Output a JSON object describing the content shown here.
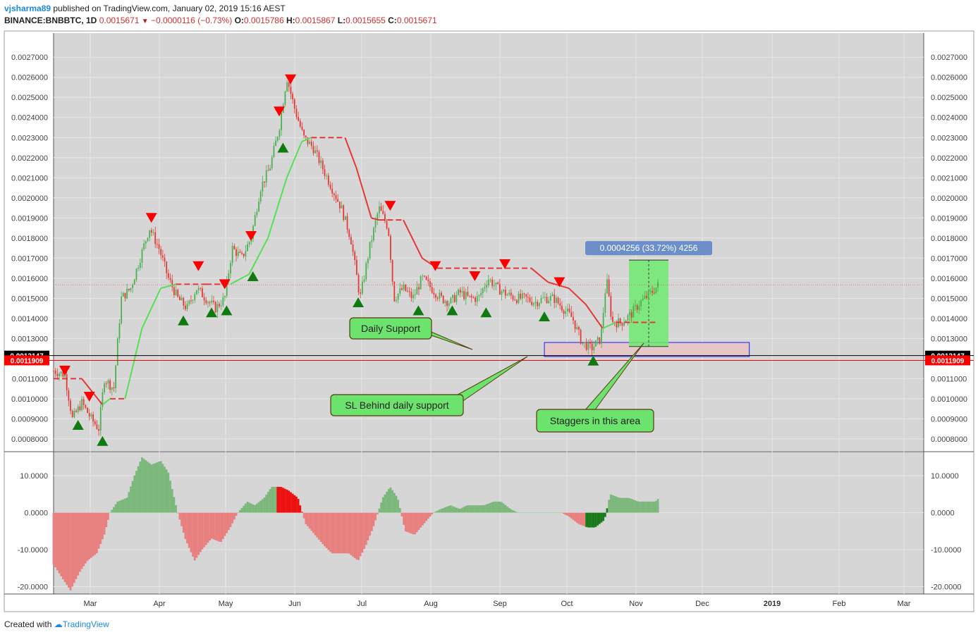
{
  "header": {
    "author": "vjsharma89",
    "published_text": " published on TradingView.com, January 02, 2019 15:16 AEST",
    "symbol": "BINANCE:BNBBTC, 1D",
    "last": "0.0015671",
    "change": "−0.0000116 (−0.73%)",
    "o_label": "O:",
    "o": "0.0015786",
    "h_label": "H:",
    "h": "0.0015867",
    "l_label": "L:",
    "l": "0.0015655",
    "c_label": "C:",
    "c": "0.0015671",
    "down_glyph": "▼"
  },
  "footer": {
    "created_with": "Created with",
    "brand": "TradingView"
  },
  "colors": {
    "bg": "#d6d6d6",
    "up": "#4caf50",
    "down": "#e53935",
    "osc_up": "#7cb87c",
    "osc_down": "#e88080",
    "osc_up_strong": "#1b7a1b",
    "osc_down_strong": "#ee1111",
    "grid": "#e6e6e6"
  },
  "chart_data": [
    {
      "type": "candlestick",
      "x_ticks": [
        "Mar",
        "Apr",
        "May",
        "Jun",
        "Jul",
        "Aug",
        "Sep",
        "Oct",
        "Nov",
        "Dec",
        "2019",
        "Feb",
        "Mar"
      ],
      "y_ticks": [
        "0.0027000",
        "0.0026000",
        "0.0025000",
        "0.0024000",
        "0.0023000",
        "0.0022000",
        "0.0021000",
        "0.0020000",
        "0.0019000",
        "0.0018000",
        "0.0017000",
        "0.0016000",
        "0.0015000",
        "0.0014000",
        "0.0013000",
        "0.0011000",
        "0.0010000",
        "0.0009000",
        "0.0008000"
      ],
      "ylim": [
        0.00074,
        0.00282
      ],
      "price_series": [
        [
          "2018-02-14",
          0.00114
        ],
        [
          "2018-02-20",
          0.00112
        ],
        [
          "2018-02-24",
          0.0009
        ],
        [
          "2018-03-01",
          0.00098
        ],
        [
          "2018-03-06",
          0.0009
        ],
        [
          "2018-03-10",
          0.00085
        ],
        [
          "2018-03-13",
          0.0011
        ],
        [
          "2018-03-18",
          0.00105
        ],
        [
          "2018-03-22",
          0.0015
        ],
        [
          "2018-03-27",
          0.00155
        ],
        [
          "2018-04-01",
          0.0017
        ],
        [
          "2018-04-06",
          0.00185
        ],
        [
          "2018-04-11",
          0.00175
        ],
        [
          "2018-04-16",
          0.0016
        ],
        [
          "2018-04-21",
          0.0015
        ],
        [
          "2018-04-26",
          0.00145
        ],
        [
          "2018-05-01",
          0.00155
        ],
        [
          "2018-05-06",
          0.0015
        ],
        [
          "2018-05-11",
          0.00145
        ],
        [
          "2018-05-16",
          0.0015
        ],
        [
          "2018-05-20",
          0.00175
        ],
        [
          "2018-05-25",
          0.0017
        ],
        [
          "2018-05-30",
          0.0018
        ],
        [
          "2018-06-04",
          0.00205
        ],
        [
          "2018-06-09",
          0.00215
        ],
        [
          "2018-06-14",
          0.00235
        ],
        [
          "2018-06-18",
          0.0026
        ],
        [
          "2018-06-22",
          0.00245
        ],
        [
          "2018-06-27",
          0.0023
        ],
        [
          "2018-07-02",
          0.00225
        ],
        [
          "2018-07-07",
          0.00215
        ],
        [
          "2018-07-12",
          0.00205
        ],
        [
          "2018-07-17",
          0.00195
        ],
        [
          "2018-07-22",
          0.0018
        ],
        [
          "2018-07-27",
          0.0015
        ],
        [
          "2018-08-01",
          0.00175
        ],
        [
          "2018-08-06",
          0.00195
        ],
        [
          "2018-08-11",
          0.00185
        ],
        [
          "2018-08-14",
          0.0015
        ],
        [
          "2018-08-19",
          0.00155
        ],
        [
          "2018-08-24",
          0.0015
        ],
        [
          "2018-08-29",
          0.0016
        ],
        [
          "2018-09-03",
          0.00155
        ],
        [
          "2018-09-08",
          0.0015
        ],
        [
          "2018-09-13",
          0.00148
        ],
        [
          "2018-09-18",
          0.00153
        ],
        [
          "2018-09-23",
          0.0015
        ],
        [
          "2018-09-28",
          0.0015
        ],
        [
          "2018-10-03",
          0.0016
        ],
        [
          "2018-10-08",
          0.00155
        ],
        [
          "2018-10-13",
          0.00152
        ],
        [
          "2018-10-18",
          0.0015
        ],
        [
          "2018-10-23",
          0.0015
        ],
        [
          "2018-10-28",
          0.00148
        ],
        [
          "2018-11-02",
          0.0015
        ],
        [
          "2018-11-07",
          0.0015
        ],
        [
          "2018-11-12",
          0.00145
        ],
        [
          "2018-11-17",
          0.0014
        ],
        [
          "2018-11-22",
          0.00128
        ],
        [
          "2018-11-27",
          0.00125
        ],
        [
          "2018-12-02",
          0.0013
        ],
        [
          "2018-12-05",
          0.0016
        ],
        [
          "2018-12-08",
          0.00138
        ],
        [
          "2018-12-13",
          0.00138
        ],
        [
          "2018-12-18",
          0.00142
        ],
        [
          "2018-12-23",
          0.00148
        ],
        [
          "2018-12-28",
          0.00152
        ],
        [
          "2019-01-02",
          0.00157
        ]
      ],
      "trend_line": [
        [
          "2018-02-14",
          0.0011
        ],
        [
          "2018-03-01",
          0.0011
        ],
        [
          "2018-03-12",
          0.00097
        ],
        [
          "2018-03-16",
          0.001
        ],
        [
          "2018-03-24",
          0.001
        ],
        [
          "2018-04-02",
          0.00135
        ],
        [
          "2018-04-12",
          0.00155
        ],
        [
          "2018-04-20",
          0.00157
        ],
        [
          "2018-05-06",
          0.00157
        ],
        [
          "2018-05-19",
          0.00157
        ],
        [
          "2018-05-29",
          0.00162
        ],
        [
          "2018-06-08",
          0.0018
        ],
        [
          "2018-06-18",
          0.0021
        ],
        [
          "2018-06-26",
          0.00228
        ],
        [
          "2018-07-01",
          0.0023
        ],
        [
          "2018-07-19",
          0.0023
        ],
        [
          "2018-07-25",
          0.00215
        ],
        [
          "2018-08-02",
          0.0019
        ],
        [
          "2018-08-06",
          0.00189
        ],
        [
          "2018-08-19",
          0.00189
        ],
        [
          "2018-08-29",
          0.0017
        ],
        [
          "2018-09-06",
          0.00165
        ],
        [
          "2018-10-26",
          0.00165
        ],
        [
          "2018-11-04",
          0.00158
        ],
        [
          "2018-11-15",
          0.00155
        ],
        [
          "2018-11-24",
          0.00147
        ],
        [
          "2018-12-03",
          0.00135
        ],
        [
          "2018-12-10",
          0.00138
        ],
        [
          "2019-01-01",
          0.00138
        ]
      ],
      "markers_up": [
        [
          "2018-02-27",
          0.00087
        ],
        [
          "2018-03-12",
          0.00079
        ],
        [
          "2018-04-24",
          0.00139
        ],
        [
          "2018-05-09",
          0.00143
        ],
        [
          "2018-05-17",
          0.00144
        ],
        [
          "2018-05-31",
          0.00161
        ],
        [
          "2018-06-16",
          0.00225
        ],
        [
          "2018-07-26",
          0.00148
        ],
        [
          "2018-08-27",
          0.00144
        ],
        [
          "2018-09-14",
          0.00144
        ],
        [
          "2018-10-02",
          0.00143
        ],
        [
          "2018-11-02",
          0.00141
        ],
        [
          "2018-11-28",
          0.00119
        ]
      ],
      "markers_down": [
        [
          "2018-02-20",
          0.00114
        ],
        [
          "2018-03-05",
          0.00101
        ],
        [
          "2018-04-07",
          0.0019
        ],
        [
          "2018-05-02",
          0.00166
        ],
        [
          "2018-05-16",
          0.00157
        ],
        [
          "2018-05-30",
          0.00181
        ],
        [
          "2018-06-14",
          0.00243
        ],
        [
          "2018-06-20",
          0.00259
        ],
        [
          "2018-08-12",
          0.00196
        ],
        [
          "2018-09-05",
          0.00166
        ],
        [
          "2018-09-26",
          0.00161
        ],
        [
          "2018-10-12",
          0.00167
        ],
        [
          "2018-11-10",
          0.00158
        ]
      ],
      "price_tags": [
        {
          "label": "0.0012147",
          "value": 0.0012147,
          "color": "#000000"
        },
        {
          "label": "0.0011909",
          "value": 0.0011909,
          "color": "#ff0000"
        }
      ],
      "current_price_line": 0.0015671,
      "measure": {
        "label": "0.0004256 (33.72%) 4256",
        "from_date": "2018-12-17",
        "to_date": "2019-01-07",
        "low": 0.00126,
        "high": 0.00169
      },
      "support_zone": {
        "from_date": "2018-11-02",
        "to_date": "2019-02-19",
        "low": 0.00121,
        "high": 0.00128
      },
      "annotations": [
        {
          "text": "Daily Support"
        },
        {
          "text": "SL Behind daily support"
        },
        {
          "text": "Staggers in this area"
        }
      ]
    },
    {
      "type": "bar",
      "name": "oscillator",
      "y_ticks": [
        "10.0000",
        "0.0000",
        "-10.0000",
        "-20.0000"
      ],
      "ylim": [
        -22,
        16.5
      ],
      "series": [
        [
          "2018-02-14",
          -14
        ],
        [
          "2018-02-19",
          -18
        ],
        [
          "2018-02-23",
          -21
        ],
        [
          "2018-02-28",
          -16
        ],
        [
          "2018-03-04",
          -13
        ],
        [
          "2018-03-09",
          -11
        ],
        [
          "2018-03-13",
          -6
        ],
        [
          "2018-03-16",
          0
        ],
        [
          "2018-03-20",
          3
        ],
        [
          "2018-03-25",
          4
        ],
        [
          "2018-03-29",
          10
        ],
        [
          "2018-04-02",
          15
        ],
        [
          "2018-04-07",
          13
        ],
        [
          "2018-04-12",
          14
        ],
        [
          "2018-04-16",
          11
        ],
        [
          "2018-04-21",
          0
        ],
        [
          "2018-04-25",
          -7
        ],
        [
          "2018-04-30",
          -13
        ],
        [
          "2018-05-04",
          -10
        ],
        [
          "2018-05-09",
          -7
        ],
        [
          "2018-05-14",
          -8
        ],
        [
          "2018-05-19",
          -4
        ],
        [
          "2018-05-23",
          0
        ],
        [
          "2018-05-28",
          3
        ],
        [
          "2018-06-01",
          2
        ],
        [
          "2018-06-06",
          4
        ],
        [
          "2018-06-10",
          7
        ],
        [
          "2018-06-15",
          7
        ],
        [
          "2018-06-19",
          6
        ],
        [
          "2018-06-24",
          4
        ],
        [
          "2018-06-28",
          -3
        ],
        [
          "2018-07-03",
          -6
        ],
        [
          "2018-07-08",
          -9
        ],
        [
          "2018-07-12",
          -11
        ],
        [
          "2018-07-17",
          -11
        ],
        [
          "2018-07-21",
          -11
        ],
        [
          "2018-07-26",
          -13
        ],
        [
          "2018-07-30",
          -9
        ],
        [
          "2018-08-03",
          -4
        ],
        [
          "2018-08-08",
          4
        ],
        [
          "2018-08-12",
          7
        ],
        [
          "2018-08-16",
          4
        ],
        [
          "2018-08-20",
          -5
        ],
        [
          "2018-08-25",
          -6
        ],
        [
          "2018-08-30",
          -3
        ],
        [
          "2018-09-04",
          0
        ],
        [
          "2018-09-08",
          1
        ],
        [
          "2018-09-13",
          2
        ],
        [
          "2018-09-18",
          1
        ],
        [
          "2018-09-22",
          2
        ],
        [
          "2018-09-27",
          2
        ],
        [
          "2018-10-01",
          2
        ],
        [
          "2018-10-06",
          3
        ],
        [
          "2018-10-10",
          3
        ],
        [
          "2018-10-15",
          1
        ],
        [
          "2018-10-19",
          0
        ],
        [
          "2018-10-24",
          0
        ],
        [
          "2018-10-28",
          0
        ],
        [
          "2018-11-02",
          0
        ],
        [
          "2018-11-06",
          0
        ],
        [
          "2018-11-11",
          0
        ],
        [
          "2018-11-15",
          -1
        ],
        [
          "2018-11-20",
          -3
        ],
        [
          "2018-11-25",
          -4
        ],
        [
          "2018-11-29",
          -4
        ],
        [
          "2018-12-04",
          -2
        ],
        [
          "2018-12-07",
          5
        ],
        [
          "2018-12-12",
          4
        ],
        [
          "2018-12-17",
          4
        ],
        [
          "2018-12-22",
          3
        ],
        [
          "2018-12-26",
          3
        ],
        [
          "2018-12-31",
          3
        ],
        [
          "2019-01-02",
          4
        ]
      ],
      "highlight_up_strong": [
        "2018-06-13",
        "2018-06-27"
      ],
      "highlight_down_strong": [
        "2018-11-24",
        "2018-12-06"
      ]
    }
  ]
}
